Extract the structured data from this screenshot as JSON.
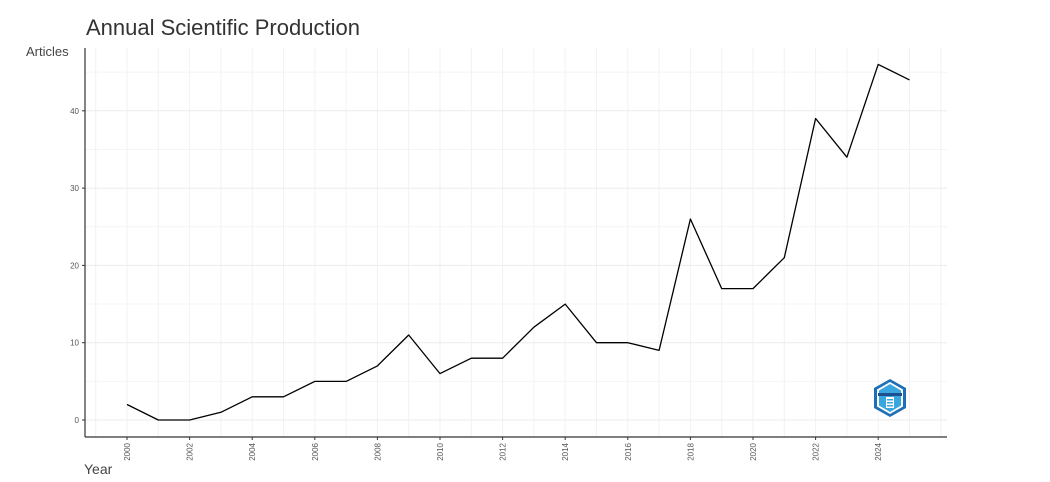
{
  "chart_data": {
    "type": "line",
    "title": "Annual Scientific Production",
    "xlabel": "Year",
    "ylabel": "Articles",
    "x": [
      2000,
      2001,
      2002,
      2003,
      2004,
      2005,
      2006,
      2007,
      2008,
      2009,
      2010,
      2011,
      2012,
      2013,
      2014,
      2015,
      2016,
      2017,
      2018,
      2019,
      2020,
      2021,
      2022,
      2023,
      2024,
      2025
    ],
    "values": [
      2,
      0,
      0,
      1,
      3,
      3,
      5,
      5,
      7,
      11,
      6,
      8,
      8,
      12,
      15,
      10,
      10,
      9,
      26,
      17,
      17,
      21,
      39,
      34,
      46,
      44
    ],
    "x_ticks": [
      "2000",
      "2002",
      "2004",
      "2006",
      "2008",
      "2010",
      "2012",
      "2014",
      "2016",
      "2018",
      "2020",
      "2022",
      "2024"
    ],
    "y_ticks": [
      "0",
      "10",
      "20",
      "30",
      "40"
    ],
    "ylim": [
      -2.5,
      48.5
    ],
    "xlim": [
      1999.3,
      2026.2
    ],
    "grid": true,
    "legend": "none",
    "line_color": "#000000"
  },
  "logo": {
    "name": "bibliometrix-logo",
    "color": "#2e9bd6"
  }
}
